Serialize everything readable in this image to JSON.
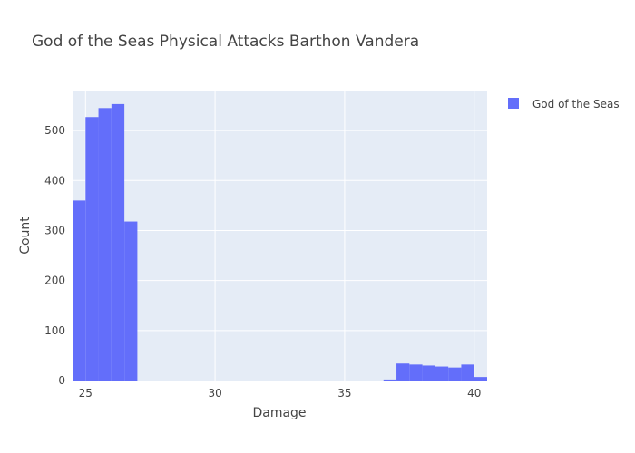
{
  "chart_data": {
    "type": "bar",
    "title": "God of the Seas Physical Attacks Barthon Vandera",
    "xlabel": "Damage",
    "ylabel": "Count",
    "xlim": [
      24.5,
      40.5
    ],
    "ylim": [
      0,
      580
    ],
    "bin_width": 0.5,
    "x_ticks": [
      25,
      30,
      35,
      40
    ],
    "y_ticks": [
      0,
      100,
      200,
      300,
      400,
      500
    ],
    "grid": true,
    "legend_position": "top-right",
    "series": [
      {
        "name": "God of the Seas",
        "color": "#636efa",
        "bins": [
          {
            "start": 24.5,
            "count": 360
          },
          {
            "start": 25.0,
            "count": 527
          },
          {
            "start": 25.5,
            "count": 545
          },
          {
            "start": 26.0,
            "count": 553
          },
          {
            "start": 26.5,
            "count": 318
          },
          {
            "start": 36.5,
            "count": 2
          },
          {
            "start": 37.0,
            "count": 34
          },
          {
            "start": 37.5,
            "count": 32
          },
          {
            "start": 38.0,
            "count": 30
          },
          {
            "start": 38.5,
            "count": 28
          },
          {
            "start": 39.0,
            "count": 26
          },
          {
            "start": 39.5,
            "count": 32
          },
          {
            "start": 40.0,
            "count": 7
          }
        ]
      }
    ]
  }
}
